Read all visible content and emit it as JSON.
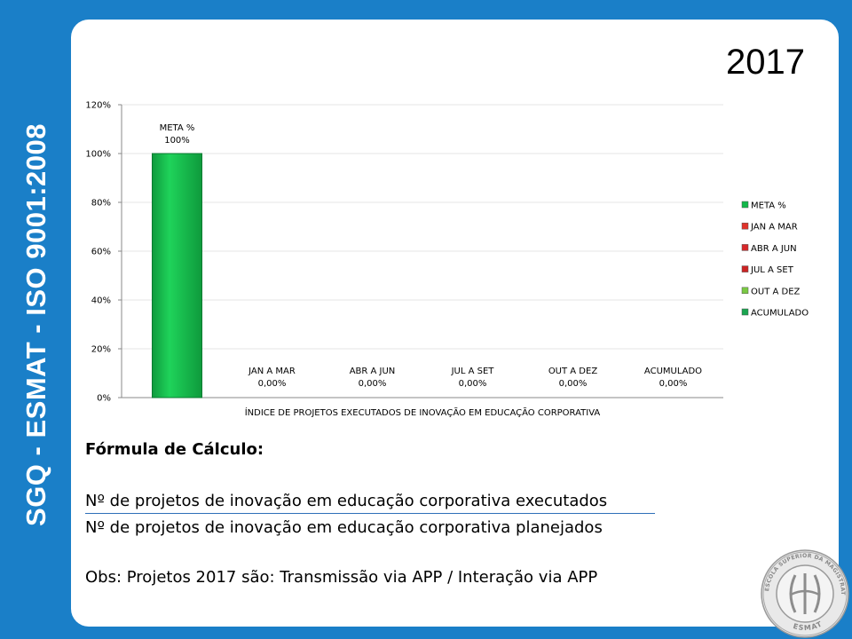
{
  "side_title": "SGQ - ESMAT - ISO 9001:2008",
  "year": "2017",
  "colors": {
    "background": "#1a7fc8",
    "card": "#ffffff",
    "meta_green": "#12b84a",
    "jan_red": "#e0322a",
    "abr_red": "#d8282a",
    "jul_red": "#cc2424",
    "out_green": "#7ac943",
    "acum_green": "#1aa550"
  },
  "chart_data": {
    "type": "bar",
    "title": "",
    "xlabel": "ÍNDICE DE PROJETOS EXECUTADOS DE INOVAÇÃO EM EDUCAÇÃO CORPORATIVA",
    "ylabel": "",
    "ylim": [
      0,
      1.2
    ],
    "yticks": [
      "0%",
      "20%",
      "40%",
      "60%",
      "80%",
      "100%",
      "120%"
    ],
    "grid": true,
    "legend_position": "right",
    "categories": [
      "META %",
      "JAN A MAR",
      "ABR A JUN",
      "JUL A SET",
      "OUT A DEZ",
      "ACUMULADO"
    ],
    "values": [
      1.0,
      0,
      0,
      0,
      0,
      0
    ],
    "data_labels": [
      "100%",
      "0,00%",
      "0,00%",
      "0,00%",
      "0,00%",
      "0,00%"
    ],
    "series": [
      {
        "name": "META %",
        "color": "#12b84a"
      },
      {
        "name": "JAN A MAR",
        "color": "#e0322a"
      },
      {
        "name": "ABR A JUN",
        "color": "#d8282a"
      },
      {
        "name": "JUL A SET",
        "color": "#cc2424"
      },
      {
        "name": "OUT A DEZ",
        "color": "#7ac943"
      },
      {
        "name": "ACUMULADO",
        "color": "#1aa550"
      }
    ]
  },
  "formula": {
    "title": "Fórmula de Cálculo:",
    "numerator": "Nº de projetos de inovação em educação corporativa executados",
    "denominator": "Nº de projetos de inovação em educação corporativa planejados",
    "obs": "Obs: Projetos 2017 são: Transmissão via APP / Interação via APP"
  },
  "seal": {
    "outer_text": "ESCOLA SUPERIOR DA MAGISTRATURA TOCANTINENSE",
    "bottom_text": "ESMAT"
  }
}
